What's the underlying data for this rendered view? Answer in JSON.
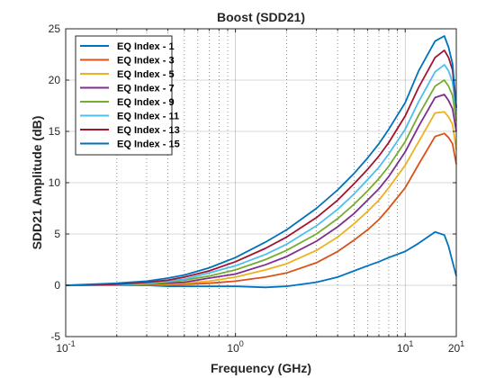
{
  "chart_data": {
    "type": "line",
    "title": "Boost (SDD21)",
    "xlabel": "Frequency (GHz)",
    "ylabel": "SDD21 Amplitude (dB)",
    "xscale": "log",
    "xlim": [
      0.1,
      20
    ],
    "ylim": [
      -5,
      25
    ],
    "x_ticks": [
      {
        "value": 0.1,
        "base": "10",
        "exp": "-1"
      },
      {
        "value": 1,
        "base": "10",
        "exp": "0"
      },
      {
        "value": 10,
        "base": "10",
        "exp": "1"
      },
      {
        "value": 20,
        "base": "20",
        "exp": "1"
      }
    ],
    "y_ticks": [
      -5,
      0,
      5,
      10,
      15,
      20,
      25
    ],
    "grid": "on (minor dotted vertical lines on log x-axis, major solid horizontal lines)",
    "legend_position": "top-left",
    "x": [
      0.1,
      0.2,
      0.3,
      0.4,
      0.5,
      0.7,
      1,
      1.5,
      2,
      3,
      4,
      5,
      6,
      7,
      8,
      10,
      12,
      15,
      17,
      18,
      19,
      20
    ],
    "series": [
      {
        "name": "EQ Index - 1",
        "color": "#0072BD",
        "values": [
          0,
          0,
          0,
          -0.1,
          -0.1,
          -0.1,
          -0.1,
          -0.2,
          -0.1,
          0.3,
          0.8,
          1.4,
          1.9,
          2.3,
          2.7,
          3.3,
          4.1,
          5.2,
          4.9,
          3.8,
          2.3,
          0.9
        ]
      },
      {
        "name": "EQ Index - 3",
        "color": "#D95319",
        "values": [
          0,
          0,
          0,
          0,
          0.1,
          0.2,
          0.4,
          0.8,
          1.2,
          2.2,
          3.3,
          4.4,
          5.4,
          6.4,
          7.5,
          9.5,
          11.8,
          14.5,
          14.8,
          14.4,
          13.8,
          11.8
        ]
      },
      {
        "name": "EQ Index - 5",
        "color": "#EDB120",
        "values": [
          0,
          0,
          0.1,
          0.1,
          0.2,
          0.4,
          0.8,
          1.5,
          2.1,
          3.4,
          4.7,
          6.0,
          7.2,
          8.3,
          9.5,
          11.7,
          14.0,
          16.8,
          16.9,
          16.4,
          15.7,
          13.2
        ]
      },
      {
        "name": "EQ Index - 7",
        "color": "#7E2F8E",
        "values": [
          0,
          0,
          0.1,
          0.2,
          0.3,
          0.7,
          1.1,
          2.0,
          2.8,
          4.3,
          5.7,
          7.0,
          8.3,
          9.4,
          10.6,
          13.0,
          15.5,
          18.3,
          18.6,
          18.0,
          17.2,
          15.0
        ]
      },
      {
        "name": "EQ Index - 9",
        "color": "#77AC30",
        "values": [
          0,
          0,
          0.1,
          0.3,
          0.5,
          0.9,
          1.5,
          2.5,
          3.4,
          5.0,
          6.5,
          7.9,
          9.2,
          10.4,
          11.6,
          14.0,
          16.6,
          19.4,
          20.0,
          19.4,
          18.5,
          16.0
        ]
      },
      {
        "name": "EQ Index - 11",
        "color": "#4DBEEE",
        "values": [
          0,
          0,
          0.2,
          0.4,
          0.6,
          1.2,
          1.9,
          3.0,
          4.0,
          5.8,
          7.4,
          8.9,
          10.3,
          11.5,
          12.8,
          15.2,
          17.9,
          20.8,
          21.5,
          20.9,
          19.8,
          17.0
        ]
      },
      {
        "name": "EQ Index - 13",
        "color": "#A2142F",
        "values": [
          0,
          0.1,
          0.3,
          0.5,
          0.8,
          1.4,
          2.3,
          3.6,
          4.7,
          6.6,
          8.3,
          9.9,
          11.3,
          12.6,
          13.9,
          16.5,
          19.3,
          22.2,
          22.9,
          22.2,
          21.0,
          17.3
        ]
      },
      {
        "name": "EQ Index - 15",
        "color": "#0072BD",
        "values": [
          0,
          0.2,
          0.4,
          0.7,
          1.0,
          1.7,
          2.7,
          4.2,
          5.4,
          7.5,
          9.3,
          10.9,
          12.4,
          13.8,
          15.2,
          17.8,
          20.9,
          23.8,
          24.3,
          23.2,
          21.6,
          17.4
        ]
      }
    ]
  }
}
